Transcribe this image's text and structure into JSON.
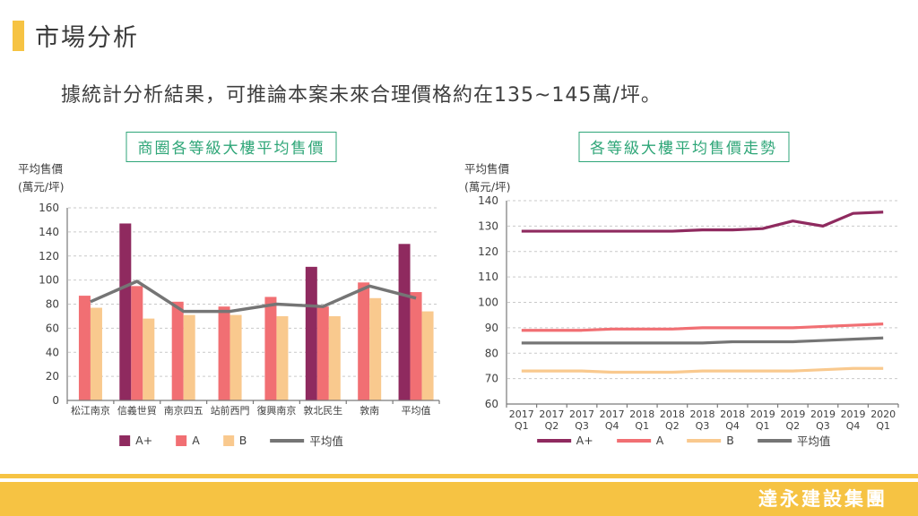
{
  "slide": {
    "title": "市場分析",
    "subtitle": "據統計分析結果，可推論本案未來合理價格約在135~145萬/坪。",
    "footer": {
      "company": "達永建設集團"
    }
  },
  "colors": {
    "accent_yellow": "#F6C343",
    "title_green": "#2FA678",
    "series_a_plus": "#8F2A5F",
    "series_a": "#F16F73",
    "series_b": "#F9C98E",
    "series_avg": "#757575",
    "text_dark": "#3F3F3F"
  },
  "chart_data": [
    {
      "type": "bar",
      "title": "商圈各等級大樓平均售價",
      "ylabel": "平均售價",
      "ylabel_unit": "(萬元/坪)",
      "ylim": [
        0,
        160
      ],
      "ytick_step": 20,
      "grid": true,
      "legend_position": "bottom",
      "categories": [
        "松江南京",
        "信義世貿",
        "南京四五",
        "站前西門",
        "復興南京",
        "敦北民生",
        "敦南",
        "平均值"
      ],
      "series": [
        {
          "name": "A+",
          "type": "bar",
          "color": "#8F2A5F",
          "values": [
            null,
            147,
            null,
            null,
            null,
            111,
            null,
            130
          ]
        },
        {
          "name": "A",
          "type": "bar",
          "color": "#F16F73",
          "values": [
            87,
            95,
            82,
            78,
            86,
            78,
            98,
            90
          ]
        },
        {
          "name": "B",
          "type": "bar",
          "color": "#F9C98E",
          "values": [
            77,
            68,
            71,
            71,
            70,
            70,
            85,
            74
          ]
        },
        {
          "name": "平均值",
          "type": "line",
          "color": "#757575",
          "values": [
            82,
            99,
            74,
            74,
            80,
            78,
            95,
            85
          ]
        }
      ]
    },
    {
      "type": "line",
      "title": "各等級大樓平均售價走勢",
      "ylabel": "平均售價",
      "ylabel_unit": "(萬元/坪)",
      "ylim": [
        60,
        140
      ],
      "ytick_step": 10,
      "grid": true,
      "legend_position": "bottom",
      "categories": [
        "2017 Q1",
        "2017 Q2",
        "2017 Q3",
        "2017 Q4",
        "2018 Q1",
        "2018 Q2",
        "2018 Q3",
        "2018 Q4",
        "2019 Q1",
        "2019 Q2",
        "2019 Q3",
        "2019 Q4",
        "2020 Q1"
      ],
      "series": [
        {
          "name": "A+",
          "type": "line",
          "color": "#8F2A5F",
          "values": [
            128,
            128,
            128,
            128,
            128,
            128,
            128.5,
            128.5,
            129,
            132,
            130,
            135,
            135.5
          ]
        },
        {
          "name": "A",
          "type": "line",
          "color": "#F16F73",
          "values": [
            89,
            89,
            89,
            89.5,
            89.5,
            89.5,
            90,
            90,
            90,
            90,
            90.5,
            91,
            91.5
          ]
        },
        {
          "name": "B",
          "type": "line",
          "color": "#F9C98E",
          "values": [
            73,
            73,
            73,
            72.5,
            72.5,
            72.5,
            73,
            73,
            73,
            73,
            73.5,
            74,
            74
          ]
        },
        {
          "name": "平均值",
          "type": "line",
          "color": "#757575",
          "values": [
            84,
            84,
            84,
            84,
            84,
            84,
            84,
            84.5,
            84.5,
            84.5,
            85,
            85.5,
            86
          ]
        }
      ]
    }
  ]
}
